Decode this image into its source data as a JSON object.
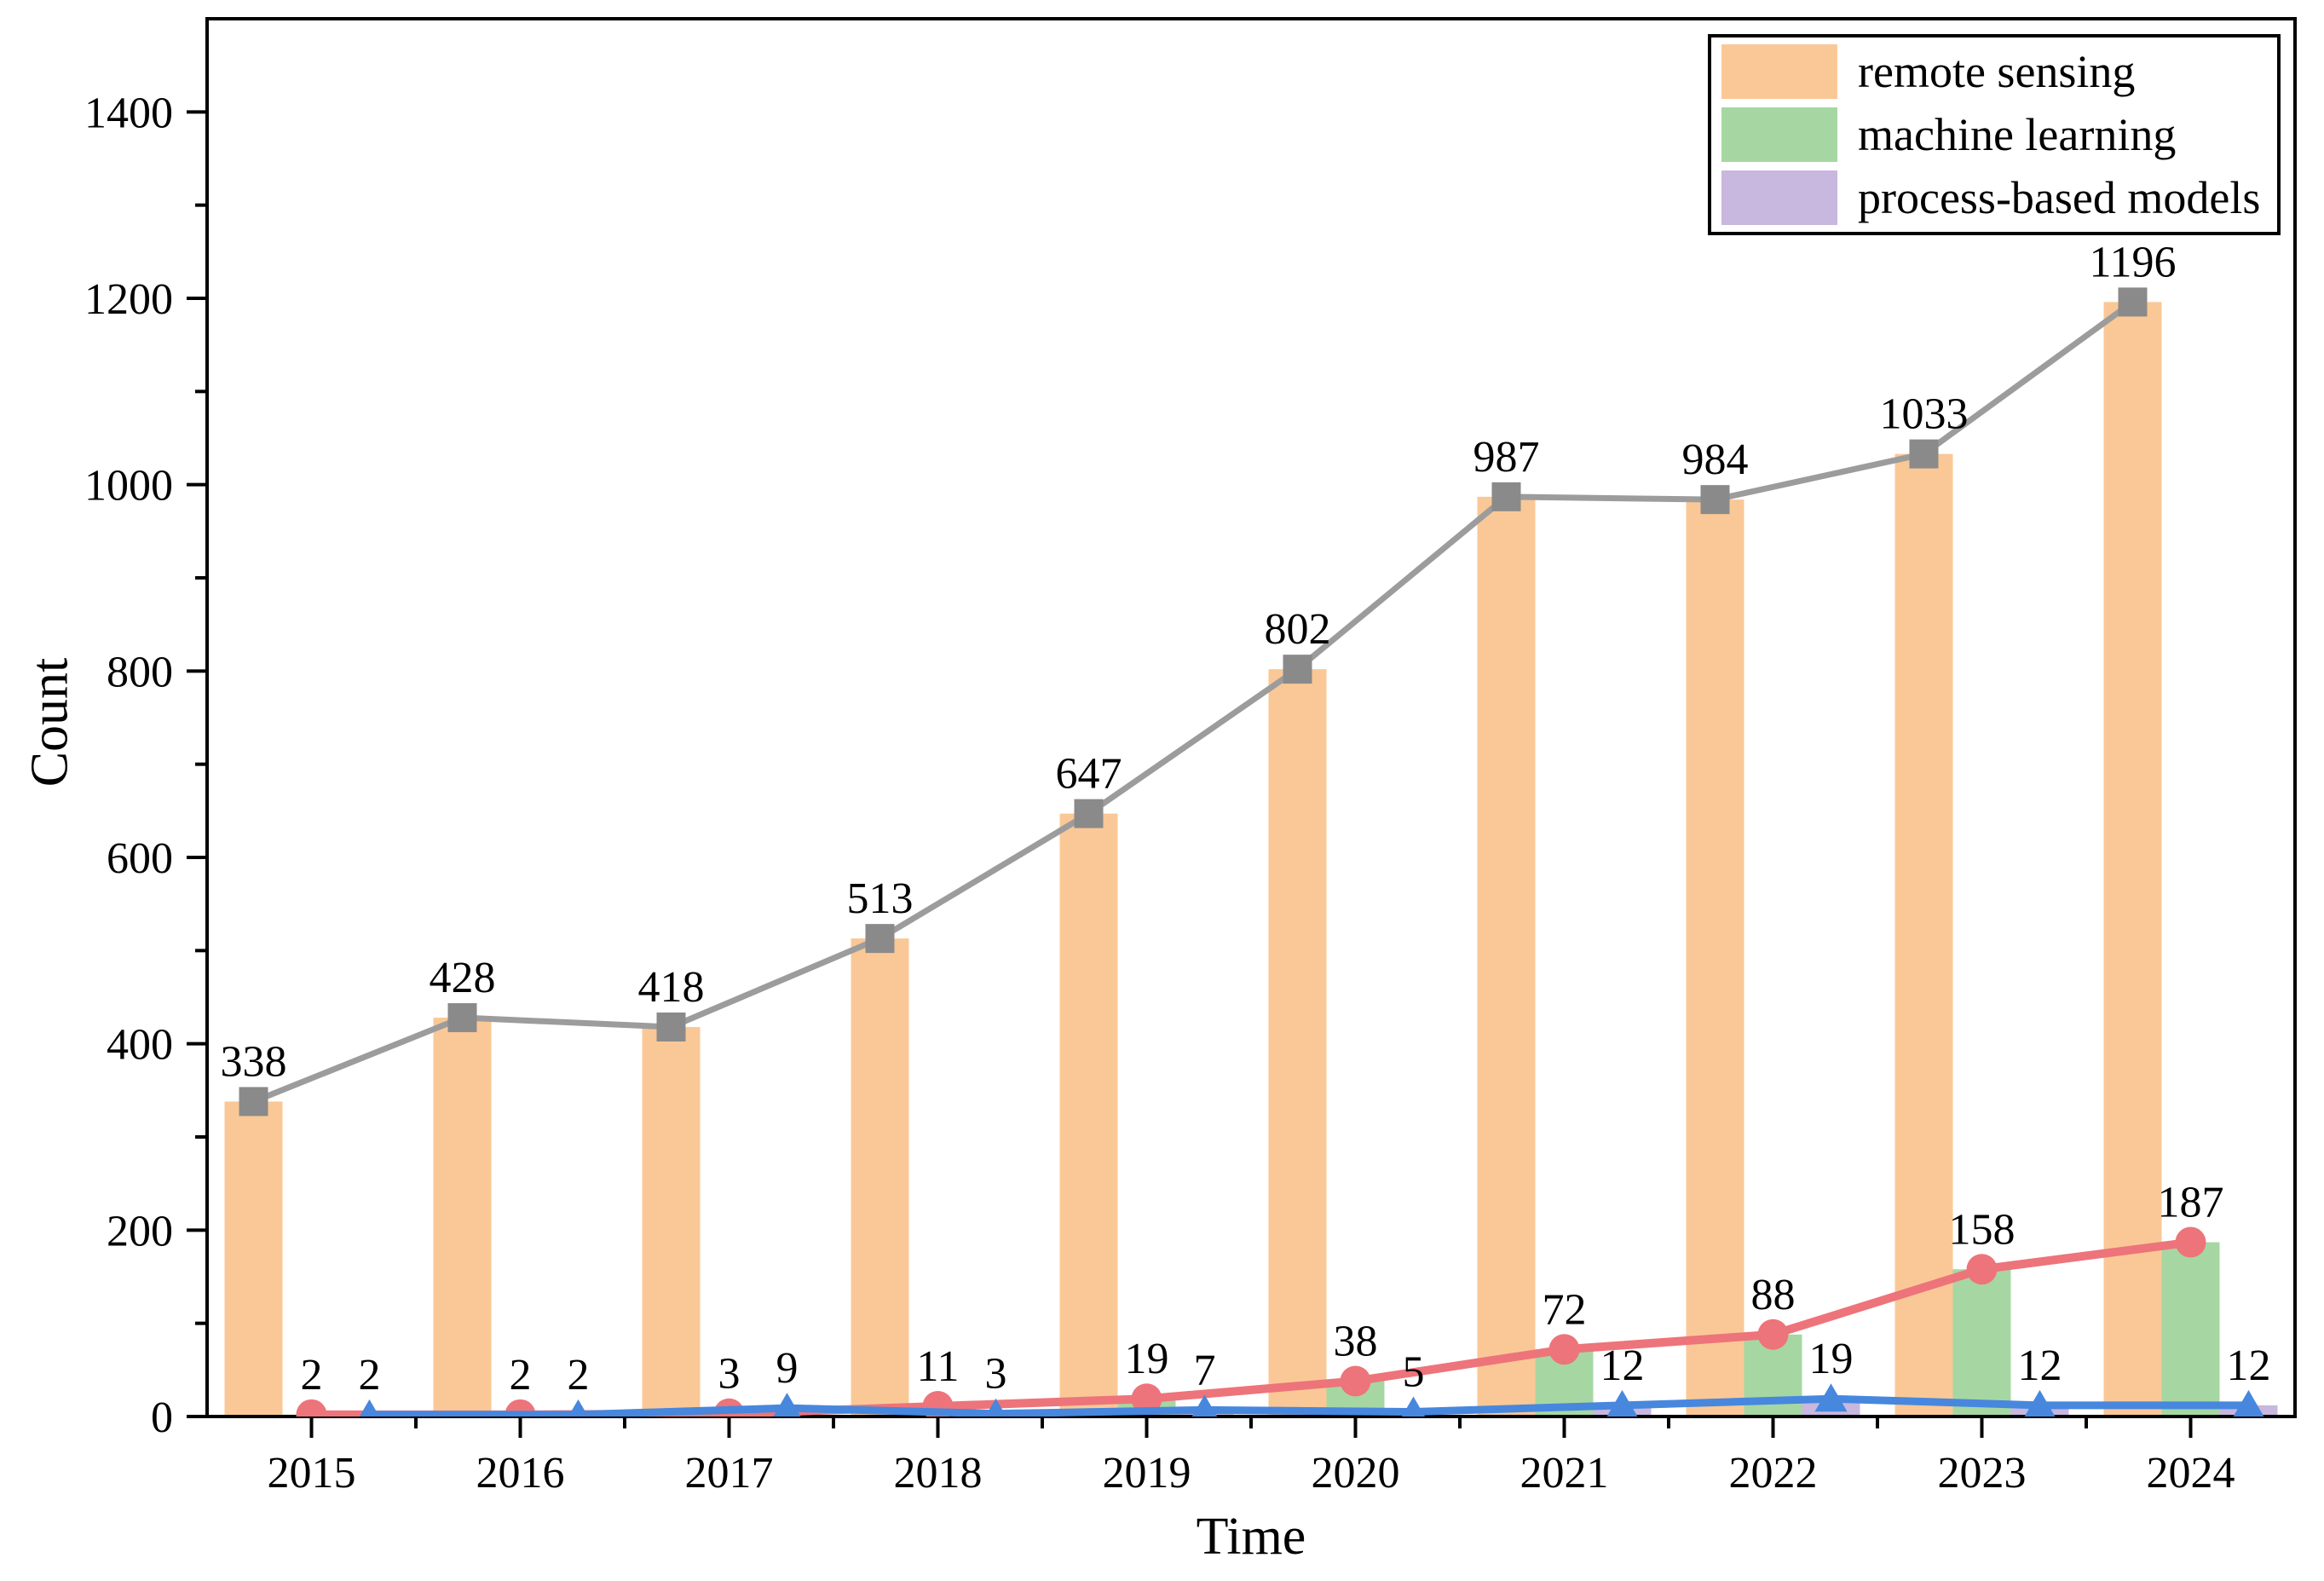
{
  "chart_data": {
    "type": "bar",
    "categories": [
      "2015",
      "2016",
      "2017",
      "2018",
      "2019",
      "2020",
      "2021",
      "2022",
      "2023",
      "2024"
    ],
    "series": [
      {
        "name": "remote sensing",
        "values": [
          338,
          428,
          418,
          513,
          647,
          802,
          987,
          984,
          1033,
          1196
        ],
        "bar_color": "#FAC896",
        "line_color": "#9C9C9C",
        "marker": "square",
        "marker_color": "#8A8A8A"
      },
      {
        "name": "machine learning",
        "values": [
          2,
          2,
          3,
          11,
          19,
          38,
          72,
          88,
          158,
          187
        ],
        "bar_color": "#A6D7A2",
        "line_color": "#ED747A",
        "marker": "circle",
        "marker_color": "#ED747A"
      },
      {
        "name": "process-based models",
        "values": [
          2,
          2,
          9,
          3,
          7,
          5,
          12,
          19,
          12,
          12
        ],
        "bar_color": "#C8B7DE",
        "line_color": "#4787DE",
        "marker": "triangle",
        "marker_color": "#4787DE"
      }
    ],
    "title": "",
    "xlabel": "Time",
    "ylabel": "Count",
    "ylim": [
      0,
      1500
    ],
    "y_major_ticks": [
      0,
      200,
      400,
      600,
      800,
      1000,
      1200,
      1400
    ],
    "y_minor_step": 100,
    "legend_position": "top-right",
    "grid": false,
    "axis_color": "#000000"
  }
}
